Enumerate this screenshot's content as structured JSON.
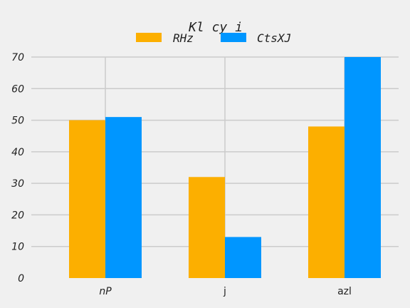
{
  "chart_data": {
    "type": "bar",
    "title": "Kl cy i",
    "xlabel": "",
    "ylabel": "",
    "categories": [
      "nP",
      "j",
      "azl"
    ],
    "category_italic": [
      true,
      false,
      false
    ],
    "series": [
      {
        "name": "RHz",
        "values": [
          50,
          32,
          48
        ],
        "color": "#fcaf00"
      },
      {
        "name": "CtsXJ",
        "values": [
          51,
          13,
          70
        ],
        "color": "#0096ff"
      }
    ],
    "ylim": [
      0,
      70
    ],
    "yticks": [
      "0",
      "10",
      "20",
      "30",
      "40",
      "50",
      "60",
      "70"
    ],
    "grid": true,
    "legend_position": "top-center"
  }
}
